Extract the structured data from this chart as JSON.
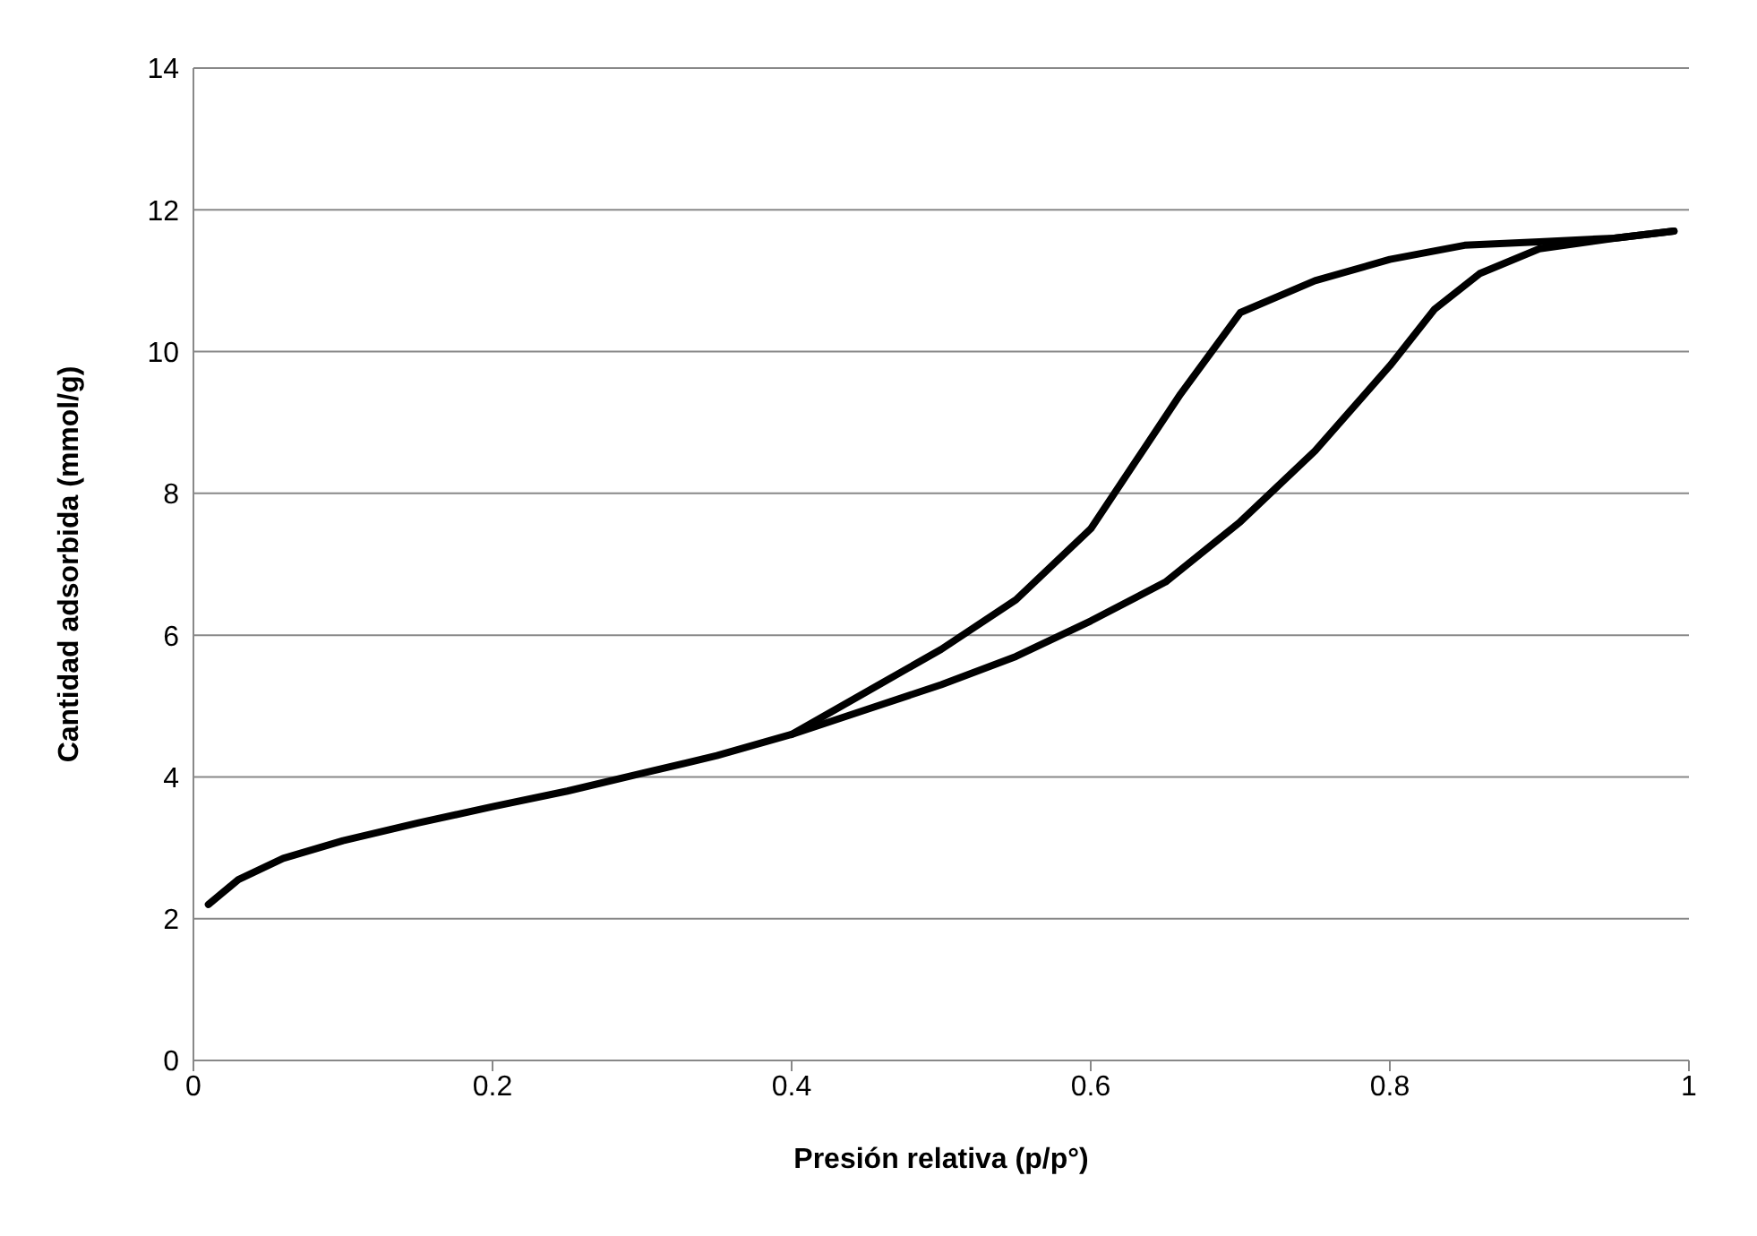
{
  "chart_data": {
    "type": "line",
    "xlabel": "Presión relativa (p/p°)",
    "ylabel": "Cantidad adsorbida (mmol/g)",
    "series": [
      {
        "color": "#000000",
        "x": [
          0.01,
          0.03,
          0.06,
          0.1,
          0.15,
          0.2,
          0.25,
          0.3,
          0.35,
          0.4,
          0.45,
          0.5,
          0.55,
          0.6,
          0.65,
          0.7,
          0.75,
          0.8,
          0.83,
          0.86,
          0.9,
          0.95,
          0.99
        ],
        "values": [
          2.2,
          2.55,
          2.85,
          3.1,
          3.35,
          3.58,
          3.8,
          4.05,
          4.3,
          4.6,
          4.95,
          5.3,
          5.7,
          6.2,
          6.75,
          7.6,
          8.6,
          9.8,
          10.6,
          11.1,
          11.45,
          11.6,
          11.7
        ]
      },
      {
        "color": "#000000",
        "x": [
          0.99,
          0.95,
          0.9,
          0.85,
          0.8,
          0.75,
          0.7,
          0.66,
          0.6,
          0.55,
          0.5,
          0.45,
          0.4
        ],
        "values": [
          11.7,
          11.6,
          11.55,
          11.5,
          11.3,
          11.0,
          10.55,
          9.4,
          7.5,
          6.5,
          5.8,
          5.2,
          4.6
        ]
      }
    ],
    "xlim": [
      0,
      1
    ],
    "xticks": [
      0,
      0.2,
      0.4,
      0.6,
      0.8,
      1
    ],
    "ylim": [
      0,
      14
    ],
    "yticks": [
      0,
      2,
      4,
      6,
      8,
      10,
      12,
      14
    ],
    "grid": "y",
    "legend": false,
    "marker": "none",
    "line_style": "solid"
  }
}
